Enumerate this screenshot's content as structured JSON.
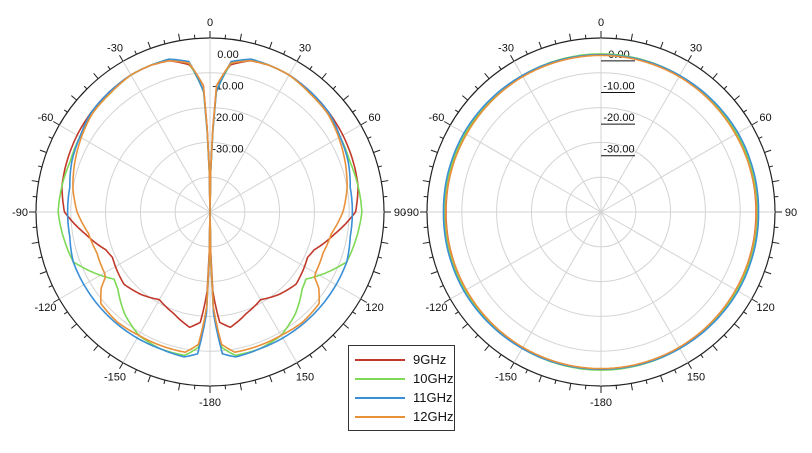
{
  "chart_data": [
    {
      "type": "polar",
      "angle_ticks": [
        "0",
        "30",
        "60",
        "90",
        "120",
        "150",
        "-180",
        "-150",
        "-120",
        "-90",
        "-60",
        "-30"
      ],
      "radial_ticks": [
        "0.00",
        "-10.00",
        "-20.00",
        "-30.00"
      ],
      "rlim": [
        -50,
        5
      ],
      "grid": true,
      "series": [
        {
          "name": "9GHz",
          "color": "#c0392b",
          "angles": [
            0,
            3,
            8,
            15,
            22,
            30,
            40,
            50,
            60,
            70,
            80,
            90,
            100,
            110,
            115,
            120,
            130,
            140,
            150,
            160,
            170,
            175,
            178,
            180
          ],
          "values": [
            -50,
            -10,
            -3,
            -0.5,
            0,
            0,
            -0.5,
            -1,
            -1.5,
            -2,
            -2.5,
            -4,
            -10,
            -15,
            -16,
            -15.5,
            -14.5,
            -16,
            -18,
            -16,
            -13,
            -15,
            -25,
            -50
          ]
        },
        {
          "name": "10GHz",
          "color": "#7ed957",
          "angles": [
            0,
            3,
            8,
            15,
            22,
            30,
            40,
            50,
            60,
            70,
            80,
            90,
            100,
            110,
            120,
            125,
            130,
            140,
            150,
            160,
            170,
            175,
            178,
            180
          ],
          "values": [
            -50,
            -12,
            -2.5,
            0,
            0,
            0,
            -1,
            -1.5,
            -2.5,
            -3,
            -2.5,
            -2,
            -3,
            -4,
            -10,
            -13,
            -12,
            -8,
            -5,
            -4,
            -4,
            -7,
            -20,
            -50
          ]
        },
        {
          "name": "11GHz",
          "color": "#3a8fd6",
          "angles": [
            0,
            3,
            8,
            15,
            22,
            30,
            40,
            50,
            60,
            70,
            80,
            90,
            100,
            110,
            120,
            125,
            130,
            140,
            150,
            160,
            170,
            175,
            178,
            180
          ],
          "values": [
            -50,
            -12,
            -2,
            0,
            0,
            0,
            -0.5,
            -1,
            -2.5,
            -3.5,
            -5,
            -5,
            -5,
            -4,
            -4,
            -4,
            -4,
            -4,
            -4,
            -4,
            -3.5,
            -5,
            -18,
            -50
          ]
        },
        {
          "name": "12GHz",
          "color": "#e8913a",
          "angles": [
            0,
            3,
            8,
            15,
            22,
            30,
            40,
            50,
            60,
            70,
            80,
            90,
            100,
            110,
            120,
            122,
            125,
            130,
            140,
            150,
            160,
            170,
            175,
            178,
            180
          ],
          "values": [
            -50,
            -10,
            -2.5,
            -0.5,
            0,
            0,
            -1,
            -1.5,
            -3,
            -4.5,
            -6,
            -8,
            -11,
            -12,
            -11.5,
            -11,
            -8,
            -5,
            -4.5,
            -5,
            -5,
            -5,
            -8,
            -20,
            -50
          ]
        }
      ]
    },
    {
      "type": "polar",
      "angle_ticks": [
        "0",
        "30",
        "60",
        "90",
        "120",
        "150",
        "-180",
        "-150",
        "-120",
        "-90",
        "-60",
        "-30"
      ],
      "radial_ticks": [
        "0.00",
        "-10.00",
        "-20.00",
        "-30.00"
      ],
      "rlim": [
        -50,
        5
      ],
      "grid": true,
      "series": [
        {
          "name": "9GHz",
          "color": "#c0392b",
          "angles": [
            0,
            30,
            60,
            90,
            120,
            150,
            180,
            210,
            240,
            270,
            300,
            330,
            360
          ],
          "values": [
            -0.3,
            -0.5,
            -0.8,
            -1,
            -0.8,
            -0.5,
            -0.3,
            -0.5,
            -0.8,
            -1,
            -0.8,
            -0.5,
            -0.3
          ]
        },
        {
          "name": "10GHz",
          "color": "#7ed957",
          "angles": [
            0,
            30,
            60,
            90,
            120,
            150,
            180,
            210,
            240,
            270,
            300,
            330,
            360
          ],
          "values": [
            0,
            -0.2,
            -0.4,
            -0.5,
            -0.4,
            -0.2,
            0,
            -0.2,
            -0.4,
            -0.5,
            -0.4,
            -0.2,
            0
          ]
        },
        {
          "name": "11GHz",
          "color": "#3a8fd6",
          "angles": [
            0,
            30,
            60,
            90,
            120,
            150,
            180,
            210,
            240,
            270,
            300,
            330,
            360
          ],
          "values": [
            -0.3,
            -0.2,
            0,
            -0.2,
            0,
            -0.2,
            -0.3,
            -0.2,
            0,
            -0.2,
            0,
            -0.2,
            -0.3
          ]
        },
        {
          "name": "12GHz",
          "color": "#e8913a",
          "angles": [
            0,
            30,
            60,
            90,
            120,
            150,
            180,
            210,
            240,
            270,
            300,
            330,
            360
          ],
          "values": [
            -0.5,
            -0.6,
            -0.9,
            -0.9,
            -0.8,
            -0.6,
            -0.5,
            -0.6,
            -0.8,
            -0.9,
            -0.9,
            -0.6,
            -0.5
          ]
        }
      ]
    }
  ],
  "legend": {
    "items": [
      {
        "label": "9GHz",
        "color": "#c0392b"
      },
      {
        "label": "10GHz",
        "color": "#7ed957"
      },
      {
        "label": "11GHz",
        "color": "#3a8fd6"
      },
      {
        "label": "12GHz",
        "color": "#e8913a"
      }
    ]
  }
}
